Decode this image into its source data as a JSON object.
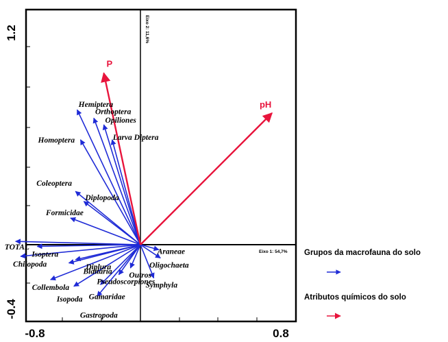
{
  "chart_data": {
    "type": "biplot",
    "xlim": [
      -0.8,
      0.8
    ],
    "ylim": [
      -0.4,
      1.2
    ],
    "x_ticks": [
      "-0.8",
      "0.8"
    ],
    "y_ticks": [
      "1.2",
      "-0.4"
    ],
    "axis1_note": "Eixo 1: 54,7%",
    "axis2_note": "Eixo 2: 11,6%",
    "species_color": "#1f2bd6",
    "env_color": "#e8143c",
    "species": [
      {
        "name": "Hemiptera",
        "x": -0.38,
        "y": 0.81
      },
      {
        "name": "Orthoptera",
        "x": -0.28,
        "y": 0.76
      },
      {
        "name": "Opiliones",
        "x": -0.22,
        "y": 0.72
      },
      {
        "name": "Larva Diptera",
        "x": -0.17,
        "y": 0.63
      },
      {
        "name": "Homoptera",
        "x": -0.36,
        "y": 0.63
      },
      {
        "name": "Coleoptera",
        "x": -0.39,
        "y": 0.32
      },
      {
        "name": "Diplopoda",
        "x": -0.34,
        "y": 0.26
      },
      {
        "name": "Formicidae",
        "x": -0.42,
        "y": 0.16
      },
      {
        "name": "TOTAL",
        "x": -0.75,
        "y": 0.02
      },
      {
        "name": "Isoptera",
        "x": -0.62,
        "y": -0.01
      },
      {
        "name": "Chilopoda",
        "x": -0.72,
        "y": -0.07
      },
      {
        "name": "Diplura",
        "x": -0.39,
        "y": -0.09
      },
      {
        "name": "Blattaria",
        "x": -0.43,
        "y": -0.11
      },
      {
        "name": "Araneae",
        "x": 0.11,
        "y": -0.03
      },
      {
        "name": "Oligochaeta",
        "x": 0.12,
        "y": -0.08
      },
      {
        "name": "Outros",
        "x": -0.06,
        "y": -0.14
      },
      {
        "name": "Pseudoscorpiones",
        "x": -0.13,
        "y": -0.18
      },
      {
        "name": "Symphyla",
        "x": 0.08,
        "y": -0.2
      },
      {
        "name": "Collembola",
        "x": -0.54,
        "y": -0.21
      },
      {
        "name": "Isopoda",
        "x": -0.4,
        "y": -0.25
      },
      {
        "name": "Gamaridae",
        "x": -0.24,
        "y": -0.24
      },
      {
        "name": "Gastropoda",
        "x": -0.26,
        "y": -0.31
      }
    ],
    "env": [
      {
        "name": "P",
        "x": -0.22,
        "y": 1.03
      },
      {
        "name": "pH",
        "x": 0.79,
        "y": 0.79
      }
    ],
    "legend": [
      {
        "label": "Grupos da macrofauna do solo",
        "kind": "species"
      },
      {
        "label": "Atributos químicos do solo",
        "kind": "env"
      }
    ]
  }
}
